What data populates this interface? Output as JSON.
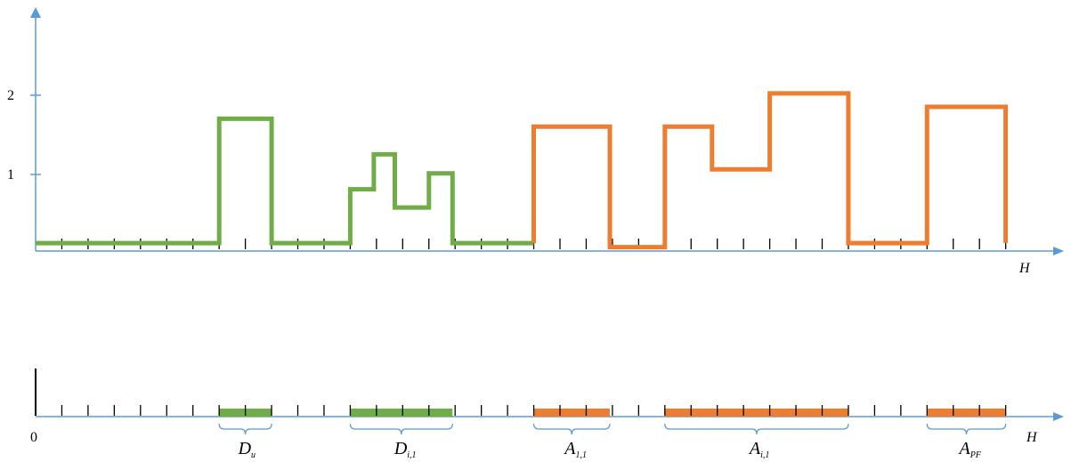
{
  "colors": {
    "axis": "#5b9bd5",
    "green": "#70ad47",
    "orange": "#ed7d31",
    "tick": "#000000"
  },
  "top_plot": {
    "y_ticks": [
      "1",
      "2"
    ],
    "x_axis_label": "H",
    "green_trace": [
      [
        0,
        0.1
      ],
      [
        7,
        0.1
      ],
      [
        7,
        1.67
      ],
      [
        9,
        1.67
      ],
      [
        9,
        0.1
      ],
      [
        12,
        0.1
      ],
      [
        12,
        0.78
      ],
      [
        12.9,
        0.78
      ],
      [
        12.9,
        1.22
      ],
      [
        13.7,
        1.22
      ],
      [
        13.7,
        0.55
      ],
      [
        15,
        0.55
      ],
      [
        15,
        0.98
      ],
      [
        15.9,
        0.98
      ],
      [
        15.9,
        0.1
      ],
      [
        19,
        0.1
      ]
    ],
    "orange_trace": [
      [
        19,
        0.1
      ],
      [
        19,
        1.57
      ],
      [
        21.9,
        1.57
      ],
      [
        21.9,
        0.05
      ],
      [
        24,
        0.05
      ],
      [
        24,
        1.57
      ],
      [
        25.8,
        1.57
      ],
      [
        25.8,
        1.03
      ],
      [
        28,
        1.03
      ],
      [
        28,
        1.99
      ],
      [
        31,
        1.99
      ],
      [
        31,
        0.1
      ],
      [
        34,
        0.1
      ],
      [
        34,
        1.82
      ],
      [
        37,
        1.82
      ],
      [
        37,
        0.1
      ]
    ]
  },
  "bottom_strip": {
    "origin_label": "0",
    "x_axis_label": "H",
    "segments": [
      {
        "label": "D",
        "sub": "u",
        "start": 7,
        "end": 9,
        "color": "green"
      },
      {
        "label": "D",
        "sub": "i,1",
        "start": 12,
        "end": 15.9,
        "color": "green"
      },
      {
        "label": "A",
        "sub": "1,1",
        "start": 19,
        "end": 21.9,
        "color": "orange"
      },
      {
        "label": "A",
        "sub": "i,1",
        "start": 24,
        "end": 31,
        "color": "orange"
      },
      {
        "label": "A",
        "sub": "PF",
        "start": 34,
        "end": 37,
        "color": "orange"
      }
    ]
  }
}
